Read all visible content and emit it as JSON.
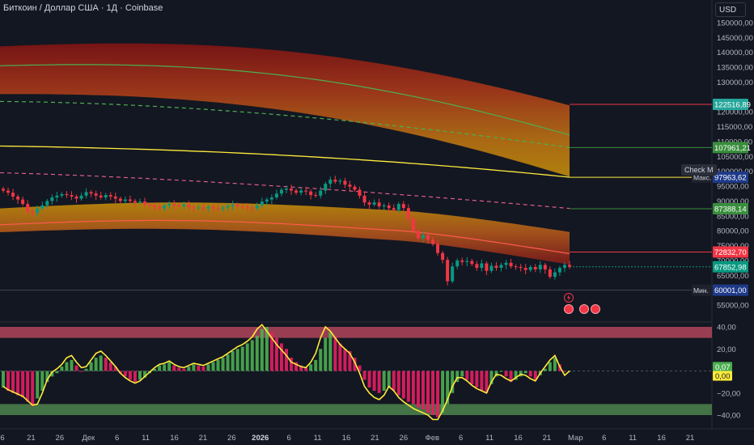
{
  "header": {
    "title": "Биткоин / Доллар США · 1Д · Coinbase",
    "currency": "USD"
  },
  "tooltip": "Check M",
  "price_axis": {
    "ticks": [
      "150000,00",
      "145000,00",
      "140000,00",
      "135000,00",
      "130000,00",
      "120000,00",
      "115000,00",
      "110000,00",
      "105000,00",
      "100000,00",
      "95000,00",
      "90000,00",
      "85000,00",
      "80000,00",
      "75000,00",
      "70000,00",
      "65000,00",
      "55000,00"
    ],
    "tick_values": [
      150000,
      145000,
      140000,
      135000,
      130000,
      120000,
      115000,
      110000,
      105000,
      100000,
      95000,
      90000,
      85000,
      80000,
      75000,
      70000,
      65000,
      55000
    ],
    "badges": [
      {
        "text": "122516,89",
        "value": 122516.89,
        "color": "#26a69a",
        "label": ""
      },
      {
        "text": "107961,21",
        "value": 107961.21,
        "color": "#388e3c",
        "label": ""
      },
      {
        "text": "97963,62",
        "value": 97963.62,
        "color": "#1e3a8a",
        "label": "Макс."
      },
      {
        "text": "87388,14",
        "value": 87388.14,
        "color": "#388e3c",
        "label": ""
      },
      {
        "text": "72832,70",
        "value": 72832.7,
        "color": "#f23645",
        "label": ""
      },
      {
        "text": "67852,98",
        "value": 67852.98,
        "color": "#089981",
        "label": ""
      },
      {
        "text": "60001,00",
        "value": 60001.0,
        "color": "#1e3a8a",
        "label": "Мин."
      }
    ]
  },
  "osc_axis": {
    "ticks": [
      "40,00",
      "20,00",
      "−20,00",
      "−40,00"
    ],
    "tick_values": [
      40,
      20,
      -20,
      -40
    ],
    "badges": [
      {
        "text": "0,07",
        "value": 0.07,
        "color": "#4caf50",
        "text_color": "#ffffff"
      },
      {
        "text": "0,00",
        "value": 0.0,
        "color": "#ffeb3b",
        "text_color": "#131722"
      }
    ]
  },
  "time_axis": {
    "labels": [
      "6",
      "21",
      "26",
      "Дек",
      "6",
      "11",
      "16",
      "21",
      "26",
      "2026",
      "6",
      "11",
      "16",
      "21",
      "26",
      "Фев",
      "6",
      "11",
      "16",
      "21",
      "Мар",
      "6",
      "11",
      "16",
      "21"
    ],
    "bold": [
      "2026"
    ]
  },
  "chart_data": {
    "type": "candlestick",
    "title": "Биткоин / Доллар США · 1Д · Coinbase",
    "price_range": [
      55000,
      150000
    ],
    "last_price": 67852.98,
    "high": 97963.62,
    "low": 60001.0,
    "closes": [
      93500,
      92800,
      91500,
      90500,
      89000,
      86500,
      86000,
      87500,
      88500,
      90000,
      91200,
      91800,
      92300,
      92000,
      91500,
      90800,
      91800,
      93000,
      92500,
      91800,
      91200,
      92000,
      91500,
      90800,
      90000,
      90500,
      90000,
      89500,
      89800,
      88800,
      88500,
      88000,
      87500,
      88500,
      89000,
      88500,
      88200,
      88800,
      88000,
      87800,
      87800,
      87500,
      88000,
      87600,
      87400,
      87800,
      88300,
      88800,
      88200,
      88000,
      87800,
      87500,
      88500,
      89800,
      90500,
      91200,
      92500,
      93800,
      94200,
      93500,
      92800,
      93500,
      93200,
      92000,
      91800,
      93500,
      95800,
      97200,
      96500,
      96800,
      95500,
      94800,
      93800,
      91800,
      89500,
      88800,
      89500,
      88200,
      88500,
      87600,
      87000,
      89000,
      87600,
      84000,
      80000,
      77500,
      78500,
      77000,
      75500,
      72500,
      70200,
      63000,
      68000,
      70000,
      69500,
      69800,
      68800,
      67500,
      69000,
      66500,
      68200,
      67500,
      68500,
      69200,
      68000,
      67800,
      67500,
      66800,
      67800,
      67000,
      68500,
      67000,
      64500,
      66000,
      67500,
      68500,
      67853
    ],
    "osc_range": [
      -45,
      42
    ],
    "osc_values": [
      -15,
      -18,
      -20,
      -22,
      -24,
      -28,
      -32,
      -25,
      -18,
      -10,
      -5,
      -2,
      4,
      8,
      10,
      5,
      0,
      2,
      8,
      12,
      14,
      12,
      8,
      4,
      -2,
      -5,
      -8,
      -10,
      -8,
      -6,
      -2,
      2,
      5,
      6,
      8,
      5,
      3,
      2,
      4,
      6,
      5,
      4,
      6,
      8,
      10,
      12,
      15,
      18,
      20,
      22,
      25,
      28,
      32,
      38,
      40,
      35,
      30,
      25,
      20,
      12,
      8,
      5,
      3,
      6,
      10,
      20,
      30,
      35,
      32,
      25,
      20,
      18,
      12,
      5,
      -8,
      -15,
      -18,
      -20,
      -18,
      -15,
      -18,
      -22,
      -25,
      -28,
      -30,
      -33,
      -35,
      -38,
      -40,
      -42,
      -38,
      -30,
      -20,
      -10,
      -5,
      -8,
      -12,
      -15,
      -18,
      -20,
      -12,
      -5,
      0,
      -5,
      -10,
      -8,
      -5,
      -2,
      -5,
      -8,
      -4,
      2,
      8,
      12,
      6,
      0,
      0.07
    ],
    "signal_values": [
      -14,
      -17,
      -19,
      -21,
      -23,
      -27,
      -31,
      -30,
      -20,
      -8,
      -1,
      2,
      6,
      12,
      14,
      8,
      3,
      4,
      10,
      16,
      18,
      14,
      9,
      4,
      -2,
      -6,
      -9,
      -11,
      -9,
      -5,
      -1,
      3,
      6,
      7,
      9,
      6,
      4,
      3,
      5,
      7,
      6,
      5,
      7,
      9,
      11,
      13,
      16,
      19,
      22,
      24,
      27,
      31,
      38,
      42,
      36,
      30,
      24,
      19,
      14,
      8,
      6,
      4,
      3,
      8,
      16,
      30,
      40,
      36,
      30,
      24,
      20,
      16,
      8,
      -2,
      -14,
      -20,
      -24,
      -26,
      -22,
      -14,
      -18,
      -24,
      -28,
      -31,
      -34,
      -36,
      -38,
      -40,
      -44,
      -44,
      -36,
      -26,
      -14,
      -6,
      -6,
      -9,
      -13,
      -16,
      -18,
      -20,
      -10,
      -3,
      -4,
      -7,
      -9,
      -6,
      -3,
      -4,
      -7,
      -9,
      -2,
      4,
      10,
      14,
      4,
      -4,
      0.0
    ],
    "series": [
      {
        "name": "",
        "color": "#4caf50",
        "kind": "upper-band-mid"
      },
      {
        "name": "",
        "color": "#ffeb3b",
        "kind": "long-ma"
      },
      {
        "name": "",
        "color": "#f23645",
        "kind": "lower-band-mid"
      }
    ]
  }
}
